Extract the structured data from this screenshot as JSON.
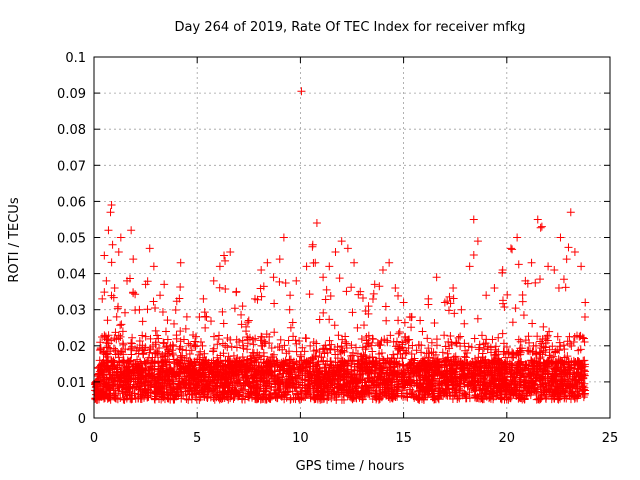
{
  "chart_data": {
    "type": "scatter",
    "title": "Day 264 of 2019, Rate Of TEC Index for receiver mfkg",
    "xlabel": "GPS time / hours",
    "ylabel": "ROTI / TECUs",
    "xlim": [
      0,
      25
    ],
    "ylim": [
      0,
      0.1
    ],
    "xticks": [
      "0",
      "5",
      "10",
      "15",
      "20",
      "25"
    ],
    "yticks": [
      "0",
      "0.01",
      "0.02",
      "0.03",
      "0.04",
      "0.05",
      "0.06",
      "0.07",
      "0.08",
      "0.09",
      "0.1"
    ],
    "grid": true,
    "marker": "+",
    "series": [
      {
        "name": "ROTI",
        "color": "#ff0000",
        "points": [
          [
            0.1,
            0.01
          ],
          [
            0.2,
            0.012
          ],
          [
            0.3,
            0.021
          ],
          [
            0.4,
            0.033
          ],
          [
            0.5,
            0.045
          ],
          [
            0.6,
            0.038
          ],
          [
            0.7,
            0.052
          ],
          [
            0.8,
            0.057
          ],
          [
            0.85,
            0.059
          ],
          [
            0.9,
            0.048
          ],
          [
            1.0,
            0.036
          ],
          [
            1.1,
            0.028
          ],
          [
            1.2,
            0.046
          ],
          [
            1.3,
            0.05
          ],
          [
            1.4,
            0.024
          ],
          [
            1.6,
            0.038
          ],
          [
            1.8,
            0.052
          ],
          [
            1.9,
            0.044
          ],
          [
            2.2,
            0.03
          ],
          [
            2.5,
            0.037
          ],
          [
            2.7,
            0.047
          ],
          [
            2.9,
            0.042
          ],
          [
            3.2,
            0.034
          ],
          [
            3.4,
            0.037
          ],
          [
            3.7,
            0.02
          ],
          [
            4.2,
            0.043
          ],
          [
            4.5,
            0.028
          ],
          [
            4.8,
            0.023
          ],
          [
            5.3,
            0.033
          ],
          [
            5.8,
            0.038
          ],
          [
            6.1,
            0.042
          ],
          [
            6.3,
            0.045
          ],
          [
            6.6,
            0.046
          ],
          [
            6.9,
            0.035
          ],
          [
            7.2,
            0.031
          ],
          [
            7.5,
            0.027
          ],
          [
            7.8,
            0.033
          ],
          [
            8.1,
            0.041
          ],
          [
            8.4,
            0.043
          ],
          [
            8.7,
            0.039
          ],
          [
            9.0,
            0.044
          ],
          [
            9.2,
            0.05
          ],
          [
            9.5,
            0.034
          ],
          [
            9.8,
            0.038
          ],
          [
            10.05,
            0.0905
          ],
          [
            10.3,
            0.042
          ],
          [
            10.6,
            0.048
          ],
          [
            10.8,
            0.054
          ],
          [
            11.1,
            0.039
          ],
          [
            11.4,
            0.042
          ],
          [
            11.7,
            0.046
          ],
          [
            12.0,
            0.049
          ],
          [
            12.3,
            0.047
          ],
          [
            12.6,
            0.043
          ],
          [
            12.9,
            0.035
          ],
          [
            13.3,
            0.031
          ],
          [
            13.6,
            0.037
          ],
          [
            14.0,
            0.041
          ],
          [
            14.3,
            0.043
          ],
          [
            14.6,
            0.036
          ],
          [
            15.0,
            0.032
          ],
          [
            15.4,
            0.028
          ],
          [
            15.8,
            0.027
          ],
          [
            16.2,
            0.033
          ],
          [
            16.6,
            0.039
          ],
          [
            17.0,
            0.032
          ],
          [
            17.4,
            0.036
          ],
          [
            17.8,
            0.03
          ],
          [
            18.2,
            0.042
          ],
          [
            18.4,
            0.055
          ],
          [
            18.6,
            0.049
          ],
          [
            19.0,
            0.034
          ],
          [
            19.4,
            0.036
          ],
          [
            19.8,
            0.041
          ],
          [
            20.2,
            0.047
          ],
          [
            20.5,
            0.05
          ],
          [
            20.9,
            0.038
          ],
          [
            21.2,
            0.043
          ],
          [
            21.5,
            0.055
          ],
          [
            21.7,
            0.053
          ],
          [
            22.0,
            0.042
          ],
          [
            22.3,
            0.041
          ],
          [
            22.6,
            0.05
          ],
          [
            22.9,
            0.044
          ],
          [
            23.1,
            0.057
          ],
          [
            23.3,
            0.046
          ],
          [
            23.6,
            0.042
          ],
          [
            23.8,
            0.032
          ]
        ]
      }
    ]
  }
}
